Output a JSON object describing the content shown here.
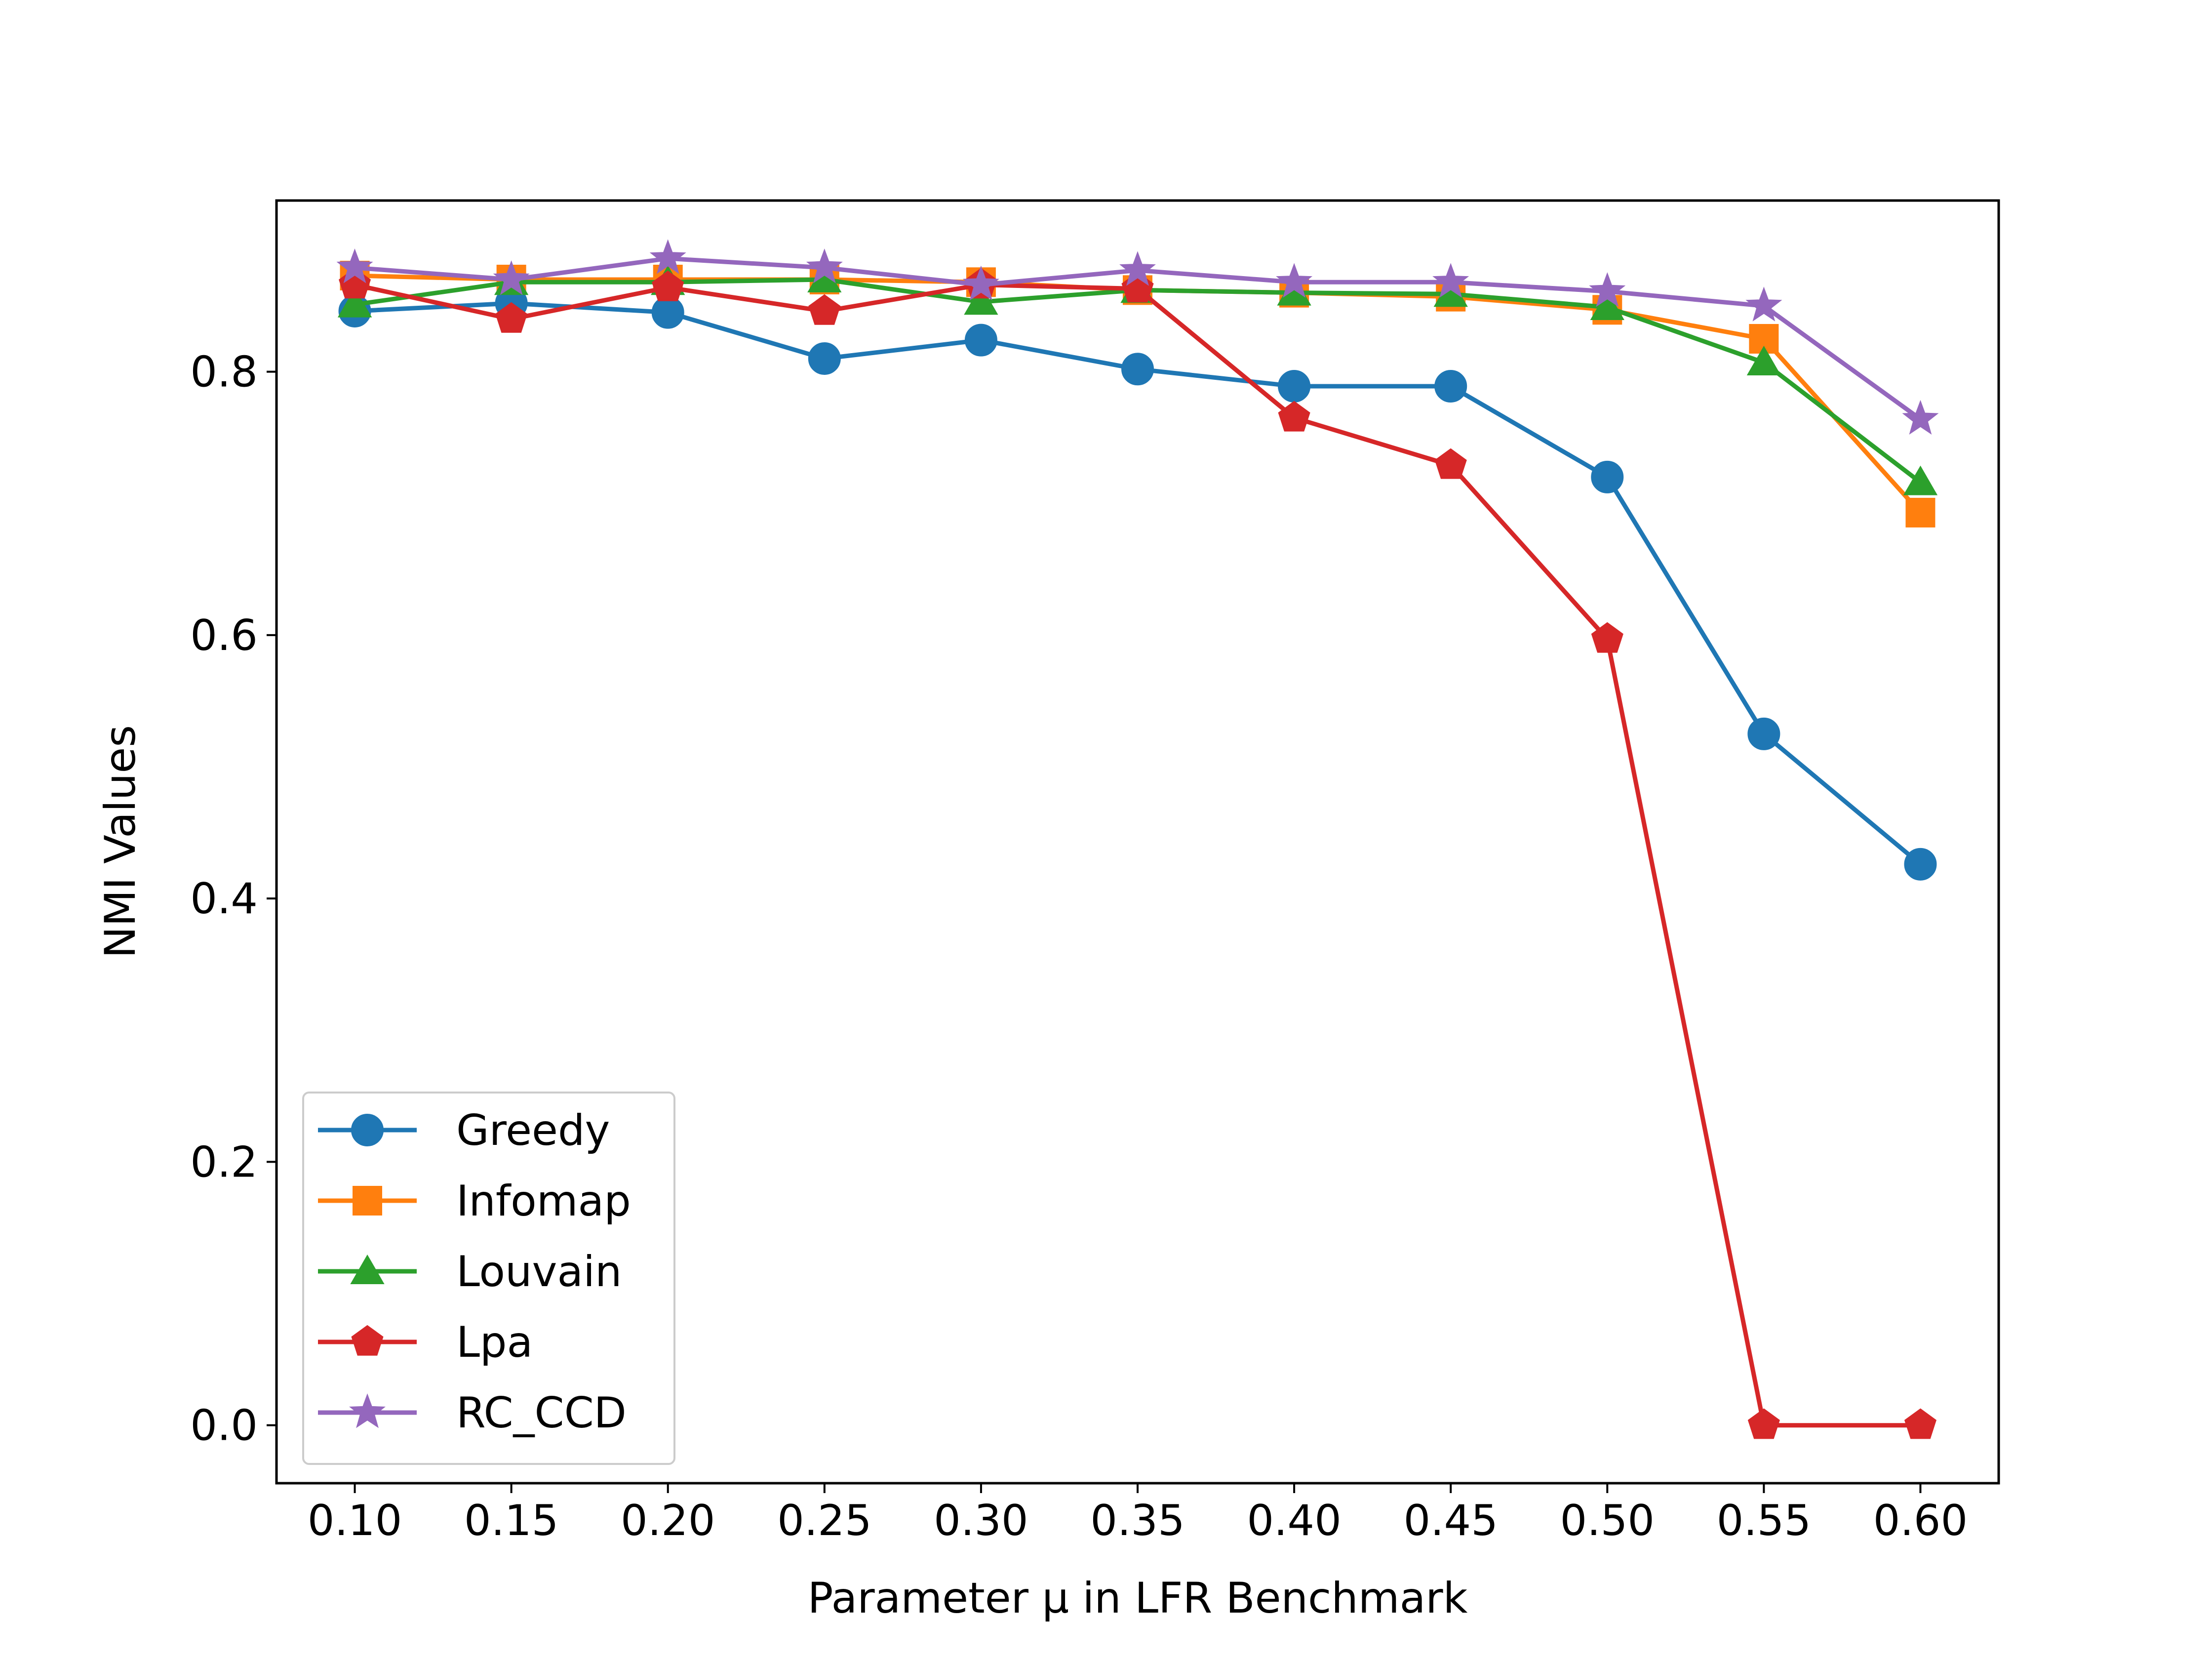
{
  "chart_data": {
    "type": "line",
    "title": "",
    "xlabel": "Parameter μ in LFR Benchmark",
    "ylabel": "NMI Values",
    "x": [
      0.1,
      0.15,
      0.2,
      0.25,
      0.3,
      0.35,
      0.4,
      0.45,
      0.5,
      0.55,
      0.6
    ],
    "x_tick_labels": [
      "0.10",
      "0.15",
      "0.20",
      "0.25",
      "0.30",
      "0.35",
      "0.40",
      "0.45",
      "0.50",
      "0.55",
      "0.60"
    ],
    "y_ticks": [
      0.0,
      0.2,
      0.4,
      0.6,
      0.8
    ],
    "y_tick_labels": [
      "0.0",
      "0.2",
      "0.4",
      "0.6",
      "0.8"
    ],
    "xlim": [
      0.075,
      0.625
    ],
    "ylim": [
      -0.044,
      0.93
    ],
    "grid": false,
    "legend_position": "lower-left",
    "series": [
      {
        "name": "Greedy",
        "color": "#1f77b4",
        "marker": "circle",
        "values": [
          0.846,
          0.852,
          0.845,
          0.81,
          0.824,
          0.802,
          0.789,
          0.789,
          0.72,
          0.525,
          0.426
        ]
      },
      {
        "name": "Infomap",
        "color": "#ff7f0e",
        "marker": "square",
        "values": [
          0.873,
          0.87,
          0.87,
          0.87,
          0.868,
          0.862,
          0.86,
          0.857,
          0.847,
          0.825,
          0.693
        ]
      },
      {
        "name": "Louvain",
        "color": "#2ca02c",
        "marker": "triangle",
        "values": [
          0.851,
          0.868,
          0.868,
          0.87,
          0.853,
          0.862,
          0.86,
          0.859,
          0.849,
          0.807,
          0.716
        ]
      },
      {
        "name": "Lpa",
        "color": "#d62728",
        "marker": "pentagon",
        "values": [
          0.866,
          0.84,
          0.864,
          0.846,
          0.866,
          0.863,
          0.765,
          0.729,
          0.597,
          0.0,
          0.0
        ]
      },
      {
        "name": "RC_CCD",
        "color": "#9467bd",
        "marker": "star",
        "values": [
          0.879,
          0.87,
          0.886,
          0.879,
          0.866,
          0.877,
          0.868,
          0.868,
          0.861,
          0.85,
          0.764
        ]
      }
    ]
  }
}
